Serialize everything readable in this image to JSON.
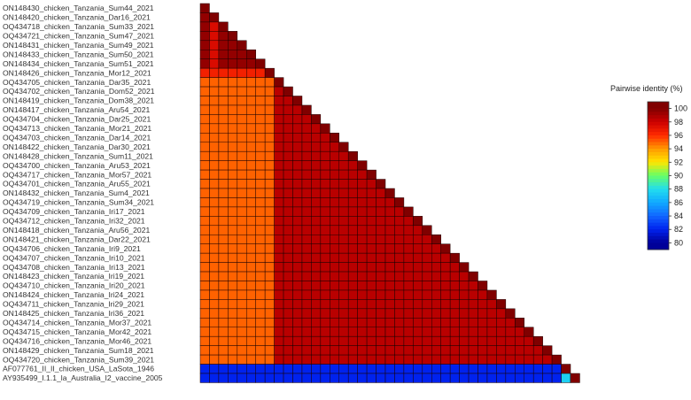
{
  "chart_data": {
    "type": "heatmap",
    "layout": "lower-triangular",
    "legend": {
      "title": "Pairwise identity (%)",
      "ticks": [
        100,
        98,
        96,
        94,
        92,
        90,
        88,
        86,
        84,
        82,
        80
      ],
      "range": [
        79,
        101
      ],
      "position": "right"
    },
    "colors": {
      "identity_100": "#800000",
      "identity_98": "#cc0000",
      "identity_96": "#ff2a00",
      "identity_94": "#ff9900",
      "identity_92": "#ffe600",
      "identity_90": "#66ff66",
      "identity_88": "#22ddee",
      "identity_86": "#11aaff",
      "identity_84": "#1166ff",
      "identity_82": "#0022ee",
      "identity_80": "#000099"
    },
    "labels": [
      "ON148430_chicken_Tanzania_Sum44_2021",
      "ON148420_chicken_Tanzania_Dar16_2021",
      "OQ434718_chicken_Tanzania_Sum33_2021",
      "OQ434721_chicken_Tanzania_Sum47_2021",
      "ON148431_chicken_Tanzania_Sum49_2021",
      "ON148433_chicken_Tanzania_Sum50_2021",
      "ON148434_chicken_Tanzania_Sum51_2021",
      "ON148426_chicken_Tanzania_Mor12_2021",
      "OQ434705_chicken_Tanzania_Dar35_2021",
      "OQ434702_chicken_Tanzania_Dom52_2021",
      "ON148419_chicken_Tanzania_Dom38_2021",
      "ON148417_chicken_Tanzania_Aru54_2021",
      "OQ434704_chicken_Tanzania_Dar25_2021",
      "OQ434713_chicken_Tanzania_Mor21_2021",
      "OQ434703_chicken_Tanzania_Dar14_2021",
      "ON148422_chicken_Tanzania_Dar30_2021",
      "ON148428_chicken_Tanzania_Sum11_2021",
      "OQ434700_chicken_Tanzania_Aru53_2021",
      "OQ434717_chicken_Tanzania_Mor57_2021",
      "OQ434701_chicken_Tanzania_Aru55_2021",
      "ON148432_chicken_Tanzania_Sum4_2021",
      "OQ434719_chicken_Tanzania_Sum34_2021",
      "OQ434709_chicken_Tanzania_Iri17_2021",
      "OQ434712_chicken_Tanzania_Iri32_2021",
      "ON148418_chicken_Tanzania_Aru56_2021",
      "ON148421_chicken_Tanzania_Dar22_2021",
      "OQ434706_chicken_Tanzania_Iri9_2021",
      "OQ434707_chicken_Tanzania_Iri10_2021",
      "OQ434708_chicken_Tanzania_Iri13_2021",
      "ON148423_chicken_Tanzania_Iri19_2021",
      "OQ434710_chicken_Tanzania_Iri20_2021",
      "ON148424_chicken_Tanzania_Iri24_2021",
      "OQ434711_chicken_Tanzania_Iri29_2021",
      "ON148425_chicken_Tanzania_Iri36_2021",
      "OQ434714_chicken_Tanzania_Mor37_2021",
      "OQ434715_chicken_Tanzania_Mor42_2021",
      "OQ434716_chicken_Tanzania_Mor46_2021",
      "ON148429_chicken_Tanzania_Sum18_2021",
      "OQ434720_chicken_Tanzania_Sum39_2021",
      "AF077761_II_II_chicken_USA_LaSota_1946",
      "AY935499_I.1.1_la_Australia_I2_vaccine_2005"
    ],
    "blocks": {
      "ndv_tanzania_within_high": 99.5,
      "ndv_tanzania_dar16_vs_sum": 97.5,
      "ndv_tanzania_mor12_vs_early": 96.5,
      "ndv_tanzania_vs_early_group": 95,
      "ndv_tanzania_within_main_group": 98.5,
      "lasota_vs_tanzania": 82,
      "vaccine_vs_tanzania": 82,
      "vaccine_vs_lasota": 87.5,
      "diagonal": 100
    }
  }
}
